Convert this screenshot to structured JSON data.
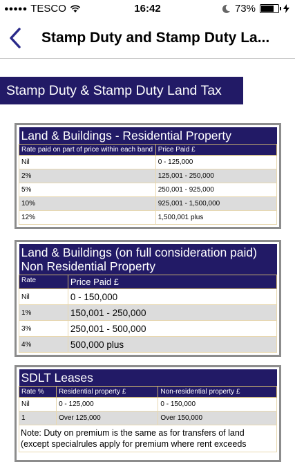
{
  "status_bar": {
    "carrier": "TESCO",
    "time": "16:42",
    "battery_percent": "73%",
    "battery_level": 0.73
  },
  "nav": {
    "title": "Stamp Duty and Stamp Duty La..."
  },
  "page_heading": "Stamp Duty & Stamp Duty Land Tax",
  "residential": {
    "title": "Land & Buildings - Residential Property",
    "col1": "Rate paid on part of price within each band",
    "col2": "Price Paid £",
    "rows": [
      {
        "rate": "Nil",
        "price": "0 - 125,000"
      },
      {
        "rate": "2%",
        "price": "125,001 - 250,000"
      },
      {
        "rate": "5%",
        "price": "250,001 - 925,000"
      },
      {
        "rate": "10%",
        "price": "925,001 - 1,500,000"
      },
      {
        "rate": "12%",
        "price": "1,500,001 plus"
      }
    ]
  },
  "non_residential": {
    "title_line1": "Land & Buildings (on full consideration paid)",
    "title_line2": "Non Residential Property",
    "col1": "Rate",
    "col2": "Price Paid £",
    "rows": [
      {
        "rate": "Nil",
        "price": "0 - 150,000"
      },
      {
        "rate": "1%",
        "price": "150,001 - 250,000"
      },
      {
        "rate": "3%",
        "price": "250,001 - 500,000"
      },
      {
        "rate": "4%",
        "price": "500,000 plus"
      }
    ]
  },
  "sdlt_leases": {
    "title": "SDLT Leases",
    "col1": "Rate %",
    "col2": "Residential property £",
    "col3": "Non-residential property £",
    "rows": [
      {
        "rate": "Nil",
        "residential": "0 - 125,000",
        "non_residential": "0 - 150,000"
      },
      {
        "rate": "1",
        "residential": "Over 125,000",
        "non_residential": "Over 150,000"
      }
    ],
    "note": "Note: Duty on premium is the same as for transfers of land (except specialrules apply for premium where rent exceeds"
  },
  "colors": {
    "header_bg": "#221a66",
    "alt_row": "#dcdcdc",
    "back_chevron": "#2a2a8a"
  },
  "icons": [
    "signal-dots-icon",
    "wifi-icon",
    "moon-icon",
    "charging-bolt-icon",
    "battery-icon",
    "back-chevron-icon"
  ]
}
